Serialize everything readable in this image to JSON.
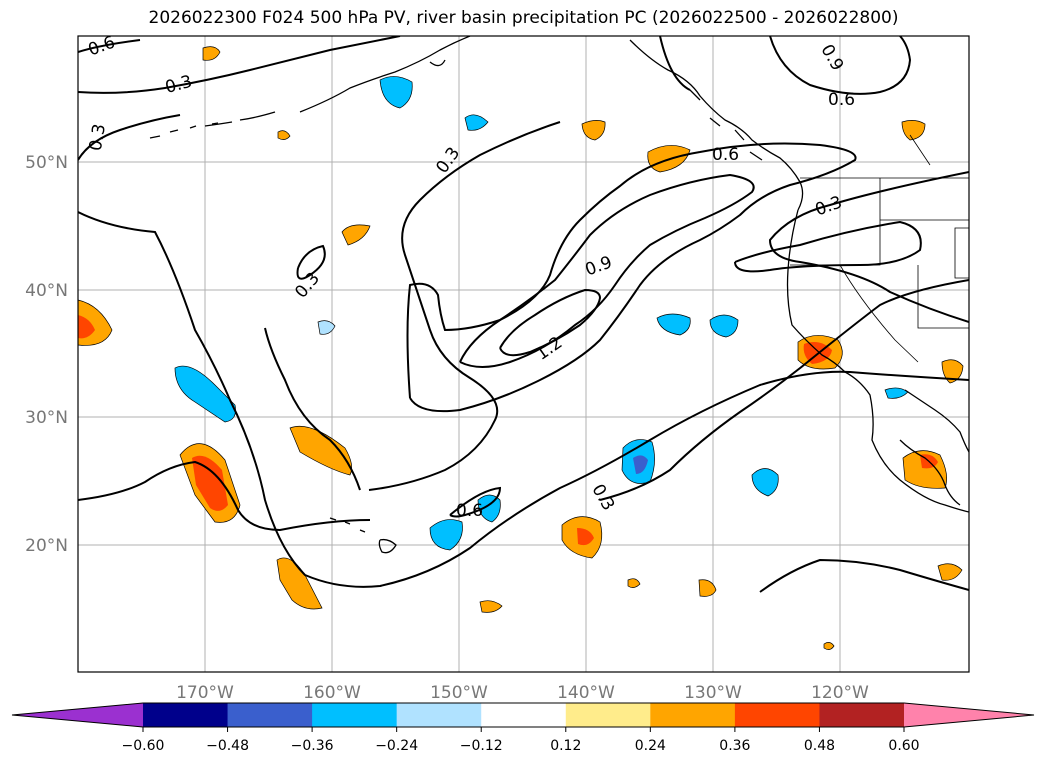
{
  "title": "2026022300 F024 500 hPa PV, river basin precipitation PC (2026022500 - 2026022800)",
  "map": {
    "region": "North Pacific and western North America",
    "lon_labels": [
      "170°W",
      "160°W",
      "150°W",
      "140°W",
      "130°W",
      "120°W"
    ],
    "lat_labels": [
      "50°N",
      "40°N",
      "30°N",
      "20°N"
    ],
    "contour_levels": [
      "0.3",
      "0.6",
      "0.9",
      "1.2"
    ],
    "contour_labels": [
      {
        "text": "0.6",
        "contour": "pv-0.6"
      },
      {
        "text": "0.3",
        "contour": "pv-0.3"
      },
      {
        "text": "0.3",
        "contour": "pv-0.3"
      },
      {
        "text": "0.3",
        "contour": "pv-0.3"
      },
      {
        "text": "0.3",
        "contour": "pv-0.3"
      },
      {
        "text": "0.9",
        "contour": "pv-0.9"
      },
      {
        "text": "0.6",
        "contour": "pv-0.6"
      },
      {
        "text": "0.6",
        "contour": "pv-0.6"
      },
      {
        "text": "0.3",
        "contour": "pv-0.3"
      },
      {
        "text": "0.9",
        "contour": "pv-0.9"
      },
      {
        "text": "1.2",
        "contour": "pv-1.2"
      },
      {
        "text": "0.6",
        "contour": "pv-0.6"
      },
      {
        "text": "0.3",
        "contour": "pv-0.3"
      }
    ]
  },
  "colorbar": {
    "ticks": [
      "−0.60",
      "−0.48",
      "−0.36",
      "−0.24",
      "−0.12",
      "0.12",
      "0.24",
      "0.36",
      "0.48",
      "0.60"
    ],
    "colors": [
      "#9b30d0",
      "#00008b",
      "#3a5fcd",
      "#00bfff",
      "#b0e2ff",
      "#ffffff",
      "#ffec8b",
      "#ffa500",
      "#ff4500",
      "#b22222",
      "#ff82ab"
    ]
  }
}
